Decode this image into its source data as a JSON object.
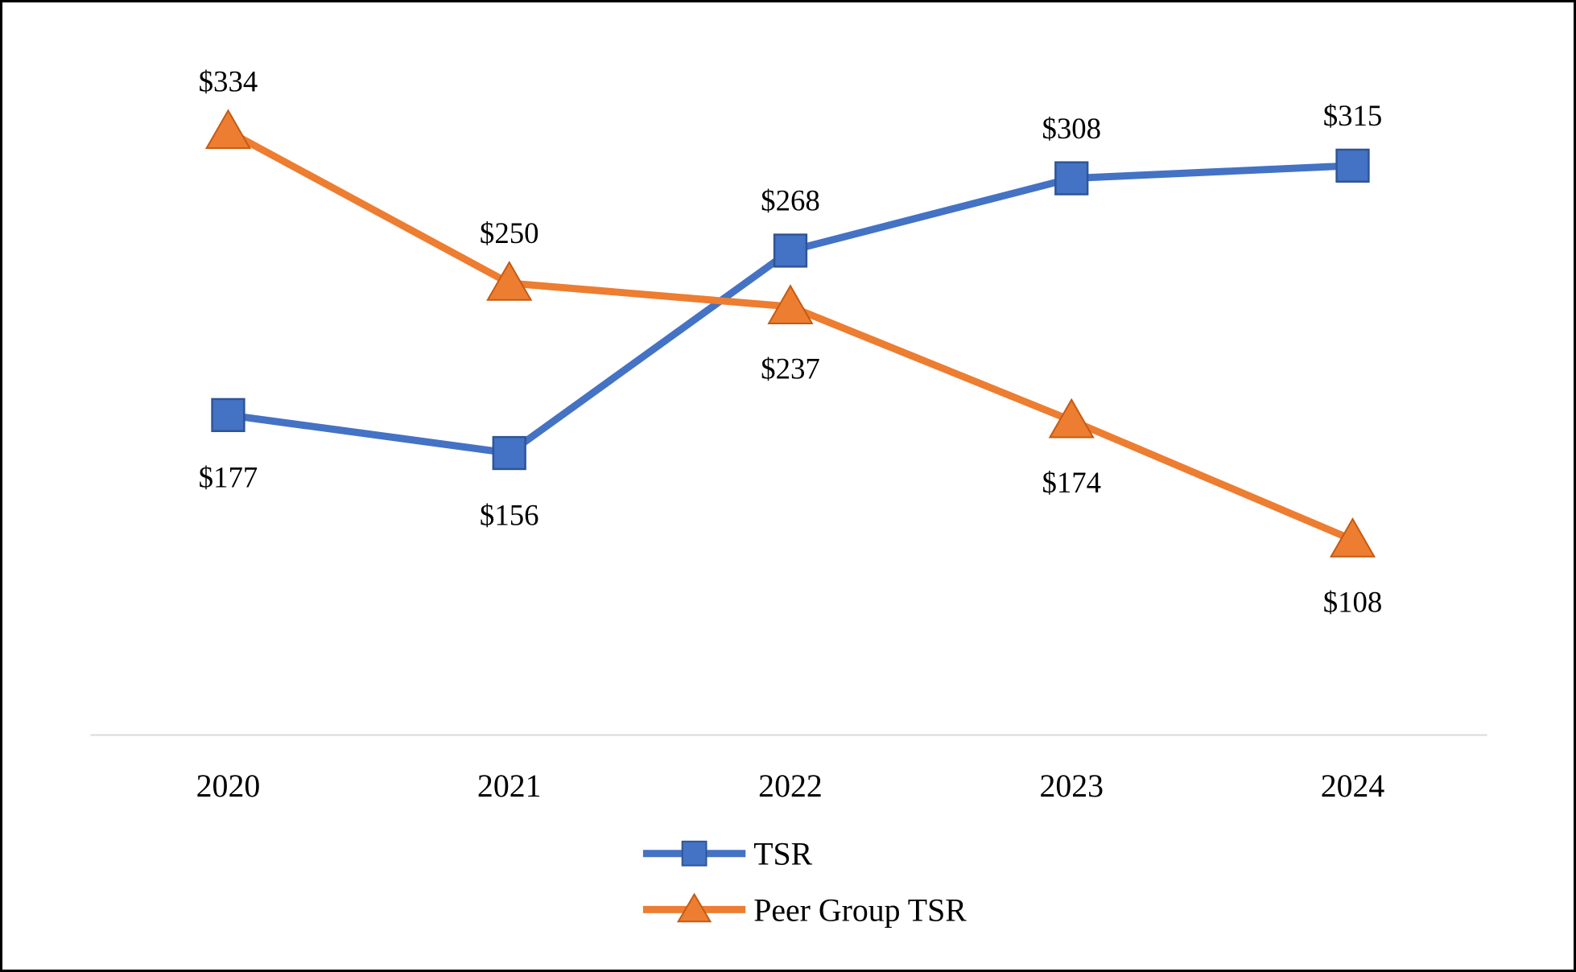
{
  "chart_data": {
    "type": "line",
    "categories": [
      "2020",
      "2021",
      "2022",
      "2023",
      "2024"
    ],
    "series": [
      {
        "name": "TSR",
        "marker": "square",
        "color": "#4472C4",
        "marker_edge": "#2E5597",
        "values": [
          177,
          156,
          268,
          308,
          315
        ],
        "labels": [
          "$177",
          "$156",
          "$268",
          "$308",
          "$315"
        ],
        "label_positions": [
          "below",
          "below",
          "above",
          "above",
          "above"
        ]
      },
      {
        "name": "Peer Group TSR",
        "marker": "triangle",
        "color": "#ED7D31",
        "marker_edge": "#C55A11",
        "values": [
          334,
          250,
          237,
          174,
          108
        ],
        "labels": [
          "$334",
          "$250",
          "$237",
          "$174",
          "$108"
        ],
        "label_positions": [
          "above",
          "above",
          "below",
          "below",
          "below"
        ]
      }
    ],
    "title": "",
    "xlabel": "",
    "ylabel": "",
    "ylim": [
      0,
      400
    ],
    "grid": false,
    "axis_color": "#D9D9D9",
    "legend_position": "bottom-center"
  }
}
